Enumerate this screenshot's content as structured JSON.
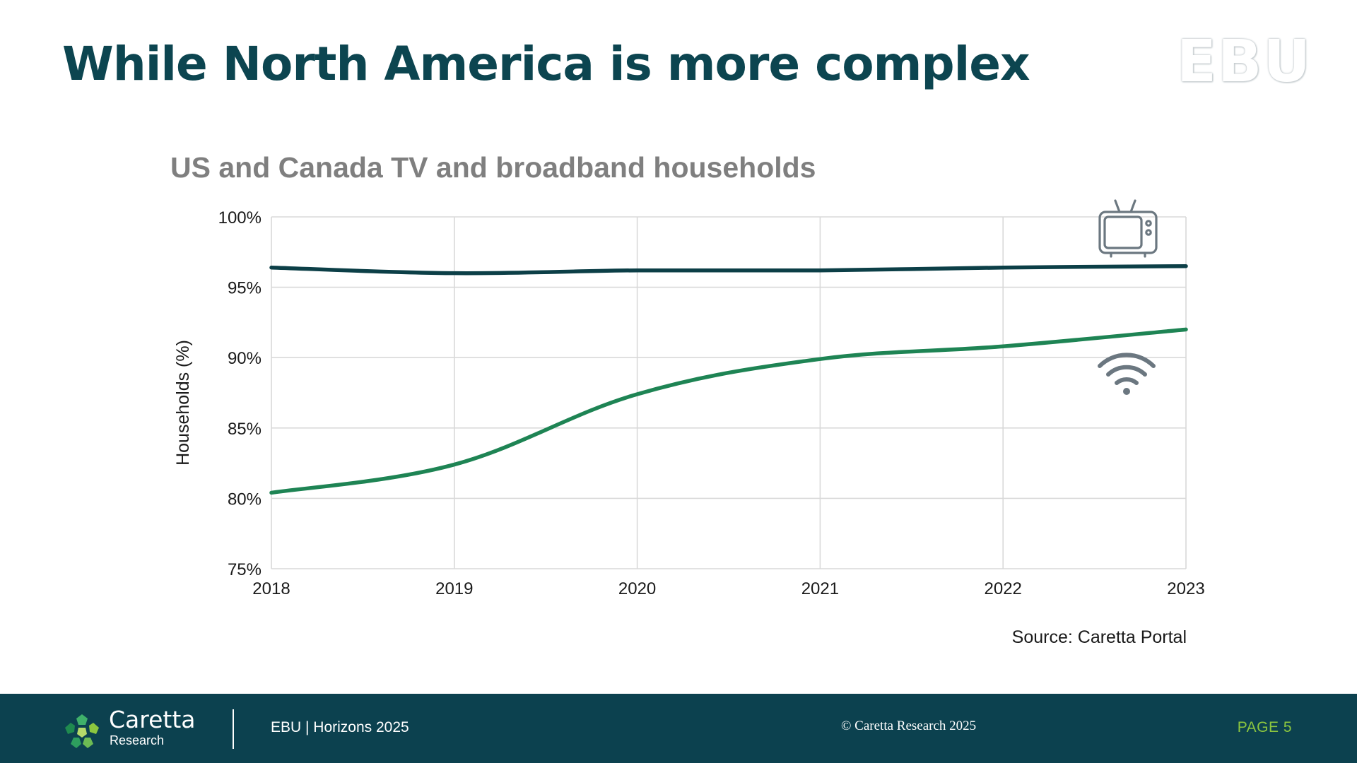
{
  "slide": {
    "title": "While North America is more complex",
    "brand_logo": "EBU"
  },
  "chart_data": {
    "type": "line",
    "title": "US and Canada TV and broadband households",
    "ylabel": "Households (%)",
    "xlabel": "",
    "x": [
      2018,
      2019,
      2020,
      2021,
      2022,
      2023
    ],
    "ylim": [
      75,
      100
    ],
    "yticks": [
      "100%",
      "95%",
      "90%",
      "85%",
      "80%",
      "75%"
    ],
    "grid": true,
    "series": [
      {
        "icon": "tv-icon",
        "color": "#0c3f47",
        "values": [
          96.4,
          96.0,
          96.2,
          96.2,
          96.4,
          96.5
        ]
      },
      {
        "icon": "wifi-icon",
        "color": "#1e8454",
        "values": [
          80.4,
          82.4,
          87.4,
          89.9,
          90.8,
          92.0
        ]
      }
    ],
    "source": "Source: Caretta Portal"
  },
  "footer": {
    "brand_name": "Caretta",
    "brand_sub": "Research",
    "event": "EBU | Horizons 2025",
    "copyright": "© Caretta Research 2025",
    "page": "PAGE 5",
    "page_color": "#8cc63f",
    "background": "#0c414f"
  }
}
